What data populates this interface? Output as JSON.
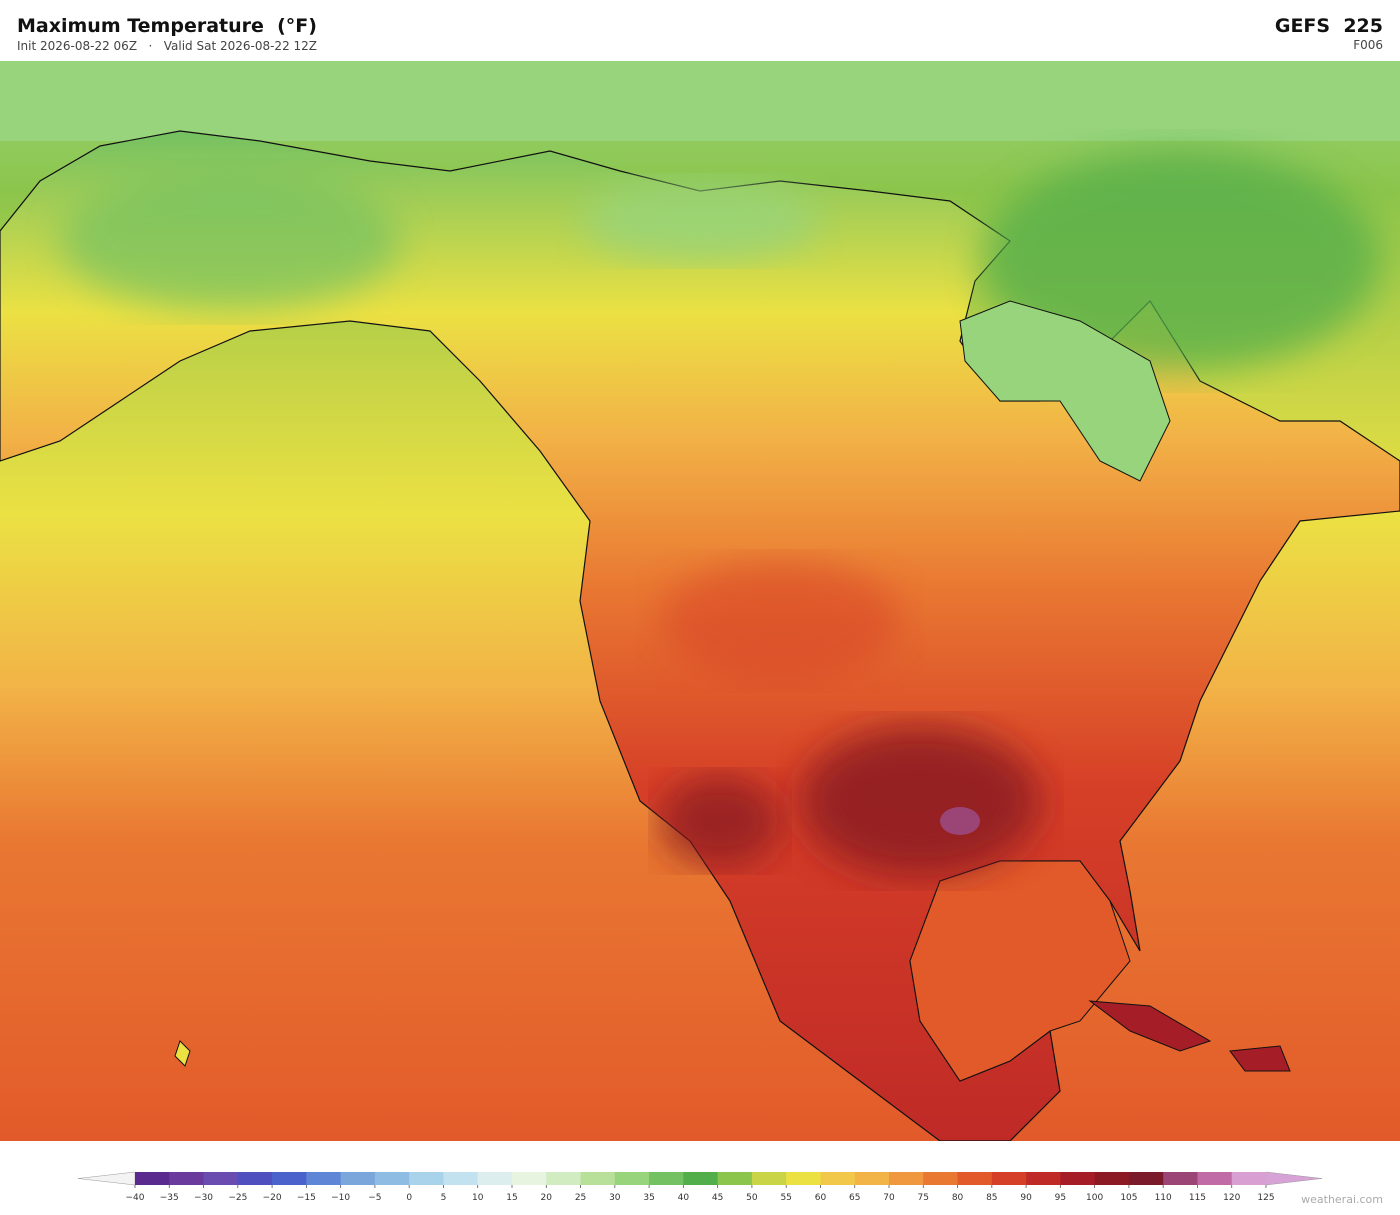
{
  "header": {
    "title": "Maximum Temperature  (°F)",
    "subtitle": "Init 2026-08-22 06Z   ·   Valid Sat 2026-08-22 12Z",
    "model": "GEFS  225",
    "forecast_hour": "F006"
  },
  "colorbar": {
    "ticks": [
      {
        "value": -40,
        "label": "−40"
      },
      {
        "value": -35,
        "label": "−35"
      },
      {
        "value": -30,
        "label": "−30"
      },
      {
        "value": -25,
        "label": "−25"
      },
      {
        "value": -20,
        "label": "−20"
      },
      {
        "value": -15,
        "label": "−15"
      },
      {
        "value": -10,
        "label": "−10"
      },
      {
        "value": -5,
        "label": "−5"
      },
      0,
      5,
      10,
      15,
      20,
      25,
      30,
      35,
      40,
      45,
      50,
      55,
      60,
      65,
      70,
      75,
      80,
      85,
      90,
      95,
      100,
      105,
      110,
      115,
      120,
      125
    ],
    "colors": [
      "#5b2a8e",
      "#6a3a9c",
      "#6a4bb0",
      "#4f4fc0",
      "#4a62cc",
      "#5f86d6",
      "#7aa6dc",
      "#8fbce2",
      "#a9d3ea",
      "#c3e2ef",
      "#dcefee",
      "#e6f4e0",
      "#d1ecc1",
      "#b8e09a",
      "#98d47c",
      "#74c162",
      "#52ad4b",
      "#8cc54b",
      "#c9d546",
      "#ebe143",
      "#f2c84a",
      "#f2b347",
      "#f0983f",
      "#e97832",
      "#e25a2a",
      "#d63f27",
      "#bf2a27",
      "#a51d26",
      "#8c1a24",
      "#7a1a2a",
      "#9b4577",
      "#c06aa6",
      "#d8a0d2"
    ],
    "under_color": "#f3f3f3",
    "over_color": "#d7a3d6"
  },
  "footer": {
    "credit": "weatherai.com"
  }
}
